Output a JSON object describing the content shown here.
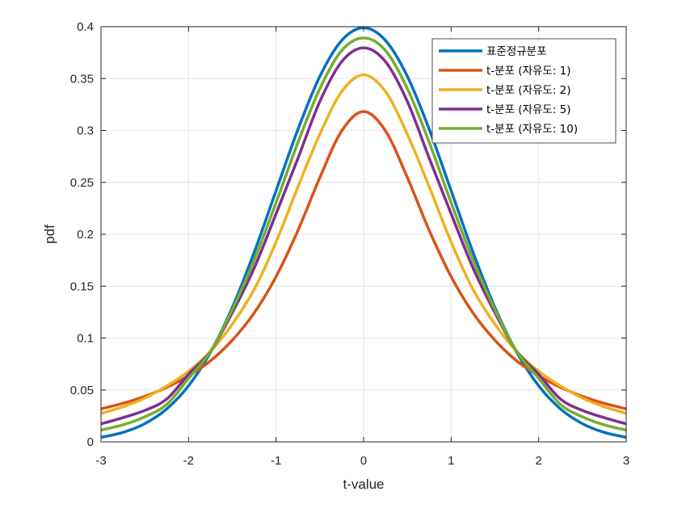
{
  "chart_data": {
    "type": "line",
    "title": "",
    "xlabel": "t-value",
    "ylabel": "pdf",
    "xlim": [
      -3,
      3
    ],
    "ylim": [
      0,
      0.4
    ],
    "xticks": [
      -3,
      -2,
      -1,
      0,
      1,
      2,
      3
    ],
    "xtick_labels": [
      "-3",
      "-2",
      "-1",
      "0",
      "1",
      "2",
      "3"
    ],
    "yticks": [
      0,
      0.05,
      0.1,
      0.15,
      0.2,
      0.25,
      0.3,
      0.35,
      0.4
    ],
    "ytick_labels": [
      "0",
      "0.05",
      "0.1",
      "0.15",
      "0.2",
      "0.25",
      "0.3",
      "0.35",
      "0.4"
    ],
    "grid": true,
    "legend_position": "top-right",
    "series": [
      {
        "name": "표준정규분포",
        "color": "#0072BD",
        "x": [
          -3,
          -2.75,
          -2.5,
          -2.25,
          -2,
          -1.75,
          -1.5,
          -1.25,
          -1,
          -0.75,
          -0.5,
          -0.25,
          0,
          0.25,
          0.5,
          0.75,
          1,
          1.25,
          1.5,
          1.75,
          2,
          2.25,
          2.5,
          2.75,
          3
        ],
        "y": [
          0.0044,
          0.0091,
          0.0175,
          0.0317,
          0.054,
          0.0863,
          0.1295,
          0.1826,
          0.242,
          0.3011,
          0.3521,
          0.3867,
          0.3989,
          0.3867,
          0.3521,
          0.3011,
          0.242,
          0.1826,
          0.1295,
          0.0863,
          0.054,
          0.0317,
          0.0175,
          0.0091,
          0.0044
        ]
      },
      {
        "name": "t-분포 (자유도: 1)",
        "color": "#D95319",
        "x": [
          -3,
          -2.75,
          -2.5,
          -2.25,
          -2,
          -1.75,
          -1.5,
          -1.25,
          -1,
          -0.75,
          -0.5,
          -0.25,
          0,
          0.25,
          0.5,
          0.75,
          1,
          1.25,
          1.5,
          1.75,
          2,
          2.25,
          2.5,
          2.75,
          3
        ],
        "y": [
          0.0318,
          0.0371,
          0.0439,
          0.0525,
          0.0637,
          0.078,
          0.0979,
          0.1242,
          0.1592,
          0.2037,
          0.2546,
          0.2996,
          0.3183,
          0.2996,
          0.2546,
          0.2037,
          0.1592,
          0.1242,
          0.0979,
          0.078,
          0.0637,
          0.0525,
          0.0439,
          0.0371,
          0.0318
        ]
      },
      {
        "name": "t-분포 (자유도: 2)",
        "color": "#EDB120",
        "x": [
          -3,
          -2.75,
          -2.5,
          -2.25,
          -2,
          -1.75,
          -1.5,
          -1.25,
          -1,
          -0.75,
          -0.5,
          -0.25,
          0,
          0.25,
          0.5,
          0.75,
          1,
          1.25,
          1.5,
          1.75,
          2,
          2.25,
          2.5,
          2.75,
          3
        ],
        "y": [
          0.0274,
          0.0338,
          0.0422,
          0.0538,
          0.068,
          0.087,
          0.1134,
          0.1469,
          0.1925,
          0.2457,
          0.2963,
          0.3375,
          0.3536,
          0.3375,
          0.2963,
          0.2457,
          0.1925,
          0.1469,
          0.1134,
          0.087,
          0.068,
          0.0538,
          0.0422,
          0.0338,
          0.0274
        ]
      },
      {
        "name": "t-분포 (자유도: 5)",
        "color": "#7E2F8E",
        "x": [
          -3,
          -2.75,
          -2.5,
          -2.25,
          -2,
          -1.75,
          -1.5,
          -1.25,
          -1,
          -0.75,
          -0.5,
          -0.25,
          0,
          0.25,
          0.5,
          0.75,
          1,
          1.25,
          1.5,
          1.75,
          2,
          2.25,
          2.5,
          2.75,
          3
        ],
        "y": [
          0.0173,
          0.0233,
          0.0303,
          0.0412,
          0.0651,
          0.0871,
          0.1245,
          0.1675,
          0.2197,
          0.2732,
          0.3279,
          0.3663,
          0.3796,
          0.3663,
          0.3279,
          0.2732,
          0.2197,
          0.1675,
          0.1245,
          0.0871,
          0.0651,
          0.0412,
          0.0303,
          0.0233,
          0.0173
        ]
      },
      {
        "name": "t-분포 (자유도: 10)",
        "color": "#77AC30",
        "x": [
          -3,
          -2.75,
          -2.5,
          -2.25,
          -2,
          -1.75,
          -1.5,
          -1.25,
          -1,
          -0.75,
          -0.5,
          -0.25,
          0,
          0.25,
          0.5,
          0.75,
          1,
          1.25,
          1.5,
          1.75,
          2,
          2.25,
          2.5,
          2.75,
          3
        ],
        "y": [
          0.0114,
          0.0164,
          0.0241,
          0.036,
          0.0611,
          0.087,
          0.1274,
          0.1751,
          0.2304,
          0.2884,
          0.3402,
          0.377,
          0.3891,
          0.377,
          0.3402,
          0.2884,
          0.2304,
          0.1751,
          0.1274,
          0.087,
          0.0611,
          0.036,
          0.0241,
          0.0164,
          0.0114
        ]
      }
    ]
  },
  "colors": {
    "grid": "#e6e6e6",
    "axis": "#262626",
    "background": "#ffffff",
    "legend_border": "#262626"
  }
}
